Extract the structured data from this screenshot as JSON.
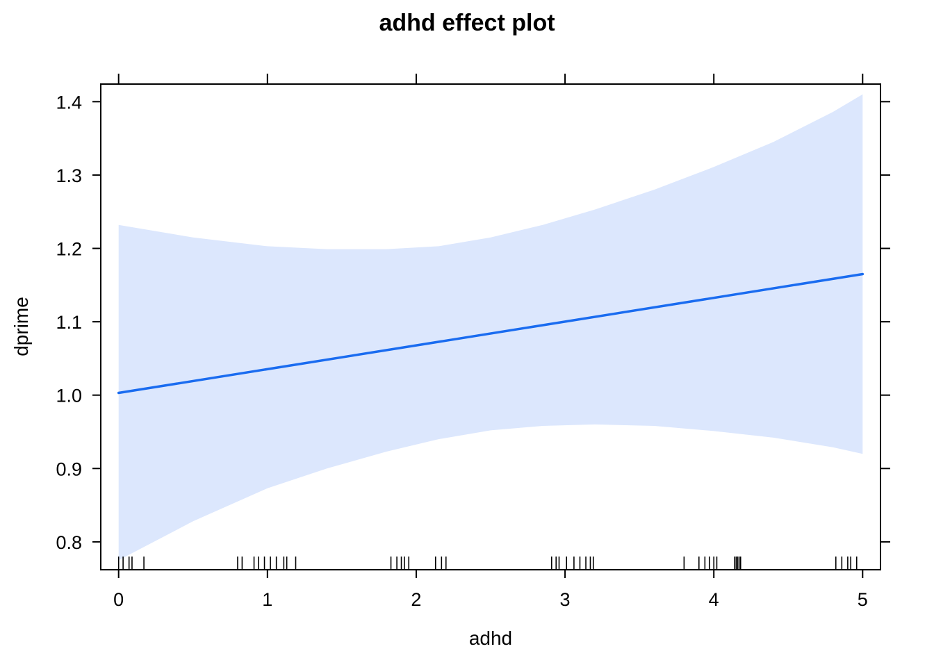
{
  "chart_data": {
    "type": "line",
    "title": "adhd effect plot",
    "xlabel": "adhd",
    "ylabel": "dprime",
    "xlim": [
      -0.12,
      5.12
    ],
    "ylim": [
      0.762,
      1.424
    ],
    "x_ticks": [
      0,
      1,
      2,
      3,
      4,
      5
    ],
    "x_tick_labels": [
      "0",
      "1",
      "2",
      "3",
      "4",
      "5"
    ],
    "y_ticks": [
      0.8,
      0.9,
      1.0,
      1.1,
      1.2,
      1.3,
      1.4
    ],
    "y_tick_labels": [
      "0.8",
      "0.9",
      "1.0",
      "1.1",
      "1.2",
      "1.3",
      "1.4"
    ],
    "grid": false,
    "line_color": "#1a6cf0",
    "band_color": "#dce7fd",
    "fit": {
      "x": [
        0,
        5
      ],
      "y": [
        1.003,
        1.165
      ]
    },
    "confidence_band": {
      "x": [
        0,
        0.5,
        1.0,
        1.4,
        1.8,
        2.15,
        2.5,
        2.85,
        3.2,
        3.6,
        4.0,
        4.4,
        4.8,
        5.0
      ],
      "lower": [
        0.775,
        0.828,
        0.873,
        0.9,
        0.923,
        0.94,
        0.952,
        0.958,
        0.96,
        0.958,
        0.951,
        0.942,
        0.929,
        0.92
      ],
      "upper": [
        1.232,
        1.215,
        1.203,
        1.199,
        1.199,
        1.203,
        1.215,
        1.232,
        1.253,
        1.28,
        1.311,
        1.345,
        1.386,
        1.41
      ]
    },
    "rug_x": [
      0.0,
      0.03,
      0.07,
      0.09,
      0.17,
      0.8,
      0.83,
      0.91,
      0.94,
      0.98,
      1.02,
      1.06,
      1.11,
      1.13,
      1.19,
      1.83,
      1.87,
      1.9,
      1.92,
      1.95,
      2.13,
      2.17,
      2.2,
      2.91,
      2.94,
      2.96,
      3.01,
      3.06,
      3.1,
      3.14,
      3.17,
      3.19,
      3.8,
      3.9,
      3.94,
      3.97,
      4.0,
      4.02,
      4.14,
      4.15,
      4.16,
      4.17,
      4.18,
      4.82,
      4.86,
      4.9,
      4.92,
      4.96
    ]
  }
}
